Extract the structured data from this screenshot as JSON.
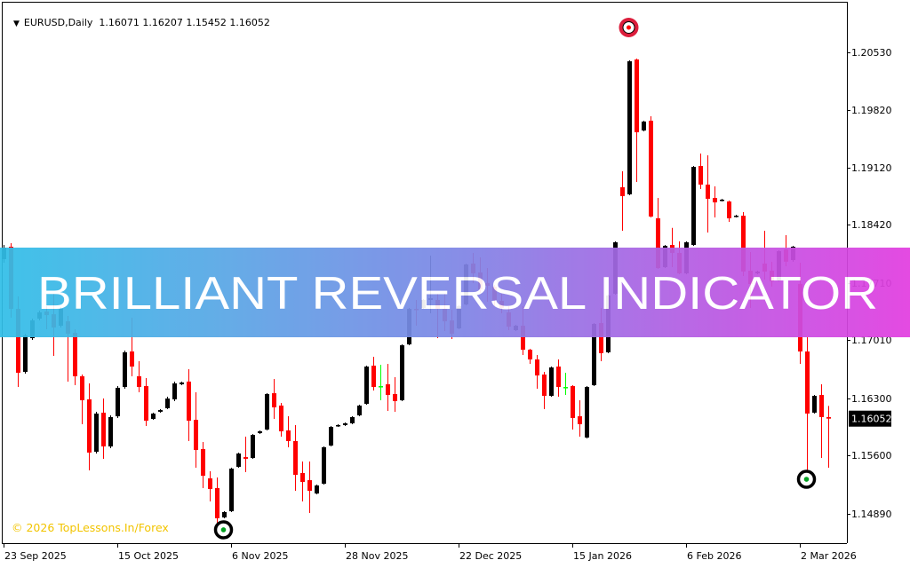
{
  "header": {
    "symbol_timeframe": "EURUSD,Daily",
    "ohlc": "1.16071 1.16207 1.15452 1.16052",
    "menu_icon": "triangle-down-icon"
  },
  "banner": {
    "title": "BRILLIANT REVERSAL INDICATOR",
    "gradient": [
      "#31bfe8",
      "#e23de0"
    ]
  },
  "watermark": "© 2026 TopLessons.In/Forex",
  "colors": {
    "bull": "#000000",
    "bear": "#ff0000",
    "doji": "#00ff00",
    "sell_signal": "#dc1e3c",
    "buy_signal": "#000000",
    "buy_dot": "#00a020",
    "watermark": "#f2c400"
  },
  "chart_data": {
    "type": "candlestick",
    "symbol": "EURUSD",
    "timeframe": "Daily",
    "ylim": [
      1.146,
      1.2117
    ],
    "y_ticks": [
      "1.20530",
      "1.19820",
      "1.19120",
      "1.18420",
      "1.17710",
      "1.17010",
      "1.16300",
      "1.15600",
      "1.14890"
    ],
    "x_ticks": [
      {
        "label": "23 Sep 2025",
        "index": 0
      },
      {
        "label": "15 Oct 2025",
        "index": 16
      },
      {
        "label": "6 Nov 2025",
        "index": 32
      },
      {
        "label": "28 Nov 2025",
        "index": 48
      },
      {
        "label": "22 Dec 2025",
        "index": 64
      },
      {
        "label": "15 Jan 2026",
        "index": 80
      },
      {
        "label": "6 Feb 2026",
        "index": 96
      },
      {
        "label": "2 Mar 2026",
        "index": 112
      }
    ],
    "current_price": "1.16052",
    "ohlc_fields": [
      "open",
      "high",
      "low",
      "close"
    ],
    "candles": [
      [
        1.18002,
        1.18175,
        1.17958,
        1.18143
      ],
      [
        1.18154,
        1.18197,
        1.17286,
        1.17394
      ],
      [
        1.17394,
        1.17546,
        1.16439,
        1.16613
      ],
      [
        1.16624,
        1.1709,
        1.16602,
        1.17069
      ],
      [
        1.17036,
        1.17275,
        1.17014,
        1.17253
      ],
      [
        1.17275,
        1.17373,
        1.17253,
        1.17351
      ],
      [
        1.17362,
        1.17427,
        1.17145,
        1.17318
      ],
      [
        1.17329,
        1.17579,
        1.16819,
        1.17166
      ],
      [
        1.17188,
        1.17416,
        1.17166,
        1.17394
      ],
      [
        1.17242,
        1.17307,
        1.16505,
        1.1709
      ],
      [
        1.17101,
        1.17145,
        1.16461,
        1.1657
      ],
      [
        1.1657,
        1.16591,
        1.15984,
        1.16277
      ],
      [
        1.16288,
        1.16483,
        1.1542,
        1.15637
      ],
      [
        1.15647,
        1.16136,
        1.15626,
        1.16114
      ],
      [
        1.16125,
        1.16298,
        1.15561,
        1.15712
      ],
      [
        1.15712,
        1.16092,
        1.15691,
        1.16071
      ],
      [
        1.16081,
        1.1645,
        1.1606,
        1.16429
      ],
      [
        1.16439,
        1.16884,
        1.16418,
        1.16863
      ],
      [
        1.16873,
        1.17286,
        1.1657,
        1.16689
      ],
      [
        1.1657,
        1.16754,
        1.16374,
        1.16439
      ],
      [
        1.1645,
        1.16548,
        1.15962,
        1.16027
      ],
      [
        1.16049,
        1.16125,
        1.16038,
        1.16114
      ],
      [
        1.16136,
        1.16168,
        1.16125,
        1.16157
      ],
      [
        1.16179,
        1.1632,
        1.16168,
        1.16298
      ],
      [
        1.16288,
        1.16505,
        1.16266,
        1.16483
      ],
      [
        1.16472,
        1.16505,
        1.16461,
        1.16494
      ],
      [
        1.16505,
        1.16656,
        1.15778,
        1.16027
      ],
      [
        1.16038,
        1.16374,
        1.15452,
        1.15669
      ],
      [
        1.1568,
        1.15767,
        1.15203,
        1.15354
      ],
      [
        1.15322,
        1.15409,
        1.1504,
        1.15192
      ],
      [
        1.15203,
        1.15333,
        1.14769,
        1.14834
      ],
      [
        1.14844,
        1.1492,
        1.14834,
        1.1491
      ],
      [
        1.1492,
        1.15452,
        1.1491,
        1.15441
      ],
      [
        1.15463,
        1.15637,
        1.15452,
        1.15626
      ],
      [
        1.15582,
        1.15832,
        1.15398,
        1.15561
      ],
      [
        1.15571,
        1.15864,
        1.15561,
        1.15853
      ],
      [
        1.15875,
        1.15908,
        1.15864,
        1.15897
      ],
      [
        1.15919,
        1.16363,
        1.15908,
        1.16353
      ],
      [
        1.16363,
        1.16537,
        1.16049,
        1.1619
      ],
      [
        1.16212,
        1.16244,
        1.15832,
        1.15897
      ],
      [
        1.15908,
        1.16081,
        1.15702,
        1.15778
      ],
      [
        1.15778,
        1.15973,
        1.1517,
        1.15365
      ],
      [
        1.15387,
        1.15528,
        1.1504,
        1.15278
      ],
      [
        1.153,
        1.15528,
        1.14899,
        1.1517
      ],
      [
        1.15137,
        1.15246,
        1.15127,
        1.15235
      ],
      [
        1.15257,
        1.15712,
        1.15246,
        1.15702
      ],
      [
        1.15723,
        1.15962,
        1.15712,
        1.15951
      ],
      [
        1.15962,
        1.15984,
        1.15951,
        1.15973
      ],
      [
        1.15973,
        1.16005,
        1.15962,
        1.15995
      ],
      [
        1.15995,
        1.16081,
        1.15984,
        1.16071
      ],
      [
        1.16092,
        1.16222,
        1.16081,
        1.16212
      ],
      [
        1.16233,
        1.167,
        1.16222,
        1.16689
      ],
      [
        1.167,
        1.16808,
        1.16396,
        1.16439
      ],
      [
        1.1645,
        1.16711,
        1.16277,
        1.1645
      ],
      [
        1.16472,
        1.16722,
        1.16146,
        1.16342
      ],
      [
        1.16353,
        1.16559,
        1.16136,
        1.16266
      ],
      [
        1.16277,
        1.1696,
        1.16266,
        1.16949
      ],
      [
        1.1696,
        1.17405,
        1.16949,
        1.17394
      ],
      [
        1.17394,
        1.17503,
        1.17188,
        1.17383
      ],
      [
        1.17405,
        1.17514,
        1.17394,
        1.17503
      ],
      [
        1.17503,
        1.18045,
        1.1734,
        1.17524
      ],
      [
        1.17503,
        1.17579,
        1.17036,
        1.17394
      ],
      [
        1.17394,
        1.17579,
        1.17123,
        1.17242
      ],
      [
        1.17253,
        1.17383,
        1.17025,
        1.1709
      ],
      [
        1.17156,
        1.17438,
        1.17145,
        1.17427
      ],
      [
        1.17448,
        1.17948,
        1.17438,
        1.17937
      ],
      [
        1.17948,
        1.18078,
        1.1771,
        1.17828
      ],
      [
        1.17839,
        1.18024,
        1.1759,
        1.17633
      ],
      [
        1.1771,
        1.17893,
        1.17481,
        1.17676
      ],
      [
        1.17665,
        1.17687,
        1.17427,
        1.17503
      ],
      [
        1.17492,
        1.17579,
        1.1734,
        1.17405
      ],
      [
        1.17351,
        1.17427,
        1.17134,
        1.17177
      ],
      [
        1.17134,
        1.17199,
        1.17123,
        1.17188
      ],
      [
        1.17188,
        1.17427,
        1.1683,
        1.16895
      ],
      [
        1.16895,
        1.16906,
        1.16722,
        1.16776
      ],
      [
        1.16776,
        1.1683,
        1.16418,
        1.1658
      ],
      [
        1.16591,
        1.16624,
        1.16168,
        1.16331
      ],
      [
        1.16331,
        1.16689,
        1.1632,
        1.16678
      ],
      [
        1.16689,
        1.16776,
        1.1632,
        1.16439
      ],
      [
        1.16439,
        1.16613,
        1.16342,
        1.16439
      ],
      [
        1.1645,
        1.16461,
        1.15919,
        1.1606
      ],
      [
        1.16081,
        1.16277,
        1.15832,
        1.15984
      ],
      [
        1.15821,
        1.1645,
        1.1581,
        1.16439
      ],
      [
        1.16461,
        1.17221,
        1.1645,
        1.1721
      ],
      [
        1.17221,
        1.17405,
        1.16754,
        1.16852
      ],
      [
        1.16863,
        1.17568,
        1.16852,
        1.17557
      ],
      [
        1.17579,
        1.18219,
        1.17568,
        1.18208
      ],
      [
        1.18881,
        1.19076,
        1.18349,
        1.18772
      ],
      [
        1.18794,
        1.20432,
        1.18783,
        1.20421
      ],
      [
        1.20443,
        1.20454,
        1.18946,
        1.19553
      ],
      [
        1.19575,
        1.19694,
        1.19564,
        1.19684
      ],
      [
        1.19694,
        1.19749,
        1.18512,
        1.18523
      ],
      [
        1.18501,
        1.1875,
        1.17882,
        1.17893
      ],
      [
        1.17904,
        1.18175,
        1.17893,
        1.18165
      ],
      [
        1.18175,
        1.18385,
        1.17904,
        1.18078
      ],
      [
        1.18078,
        1.18219,
        1.17817,
        1.17828
      ],
      [
        1.17828,
        1.18219,
        1.17817,
        1.18208
      ],
      [
        1.18175,
        1.19141,
        1.18165,
        1.1913
      ],
      [
        1.19141,
        1.19293,
        1.18859,
        1.18913
      ],
      [
        1.18913,
        1.19271,
        1.18327,
        1.1874
      ],
      [
        1.1875,
        1.18892,
        1.18512,
        1.18696
      ],
      [
        1.18718,
        1.1874,
        1.18707,
        1.18729
      ],
      [
        1.18707,
        1.18718,
        1.18458,
        1.18501
      ],
      [
        1.18523,
        1.18544,
        1.18512,
        1.18533
      ],
      [
        1.18533,
        1.18577,
        1.17796,
        1.1785
      ],
      [
        1.17861,
        1.18089,
        1.17405,
        1.17698
      ],
      [
        1.17828,
        1.17861,
        1.17817,
        1.1785
      ],
      [
        1.17948,
        1.18349,
        1.17752,
        1.1785
      ],
      [
        1.17861,
        1.17969,
        1.17665,
        1.17731
      ],
      [
        1.17741,
        1.1811,
        1.17731,
        1.18099
      ],
      [
        1.18121,
        1.18295,
        1.17915,
        1.17971
      ],
      [
        1.17991,
        1.18165,
        1.17971,
        1.18154
      ],
      [
        1.17699,
        1.17958,
        1.16722,
        1.16873
      ],
      [
        1.16873,
        1.17048,
        1.15311,
        1.16114
      ],
      [
        1.16125,
        1.16342,
        1.16114,
        1.16331
      ],
      [
        1.16342,
        1.16472,
        1.15571,
        1.16071
      ],
      [
        1.16071,
        1.16207,
        1.15452,
        1.16052
      ]
    ],
    "signals": [
      {
        "type": "sell",
        "index": 88,
        "price": 1.20834
      },
      {
        "type": "buy",
        "index": 31,
        "price": 1.14693
      },
      {
        "type": "buy",
        "index": 113,
        "price": 1.15311
      }
    ],
    "grid": false,
    "legend": "none"
  }
}
